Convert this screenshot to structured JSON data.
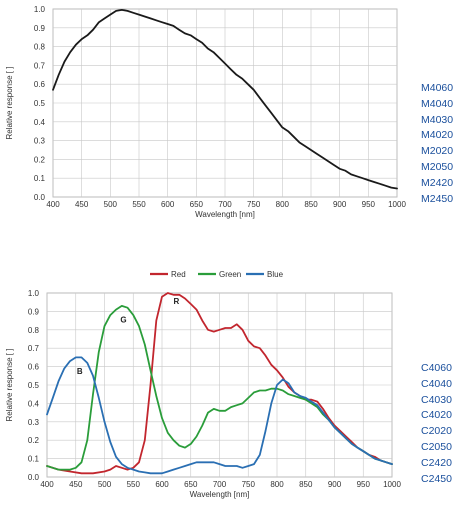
{
  "chart_data": [
    {
      "type": "line",
      "title": "",
      "xlabel": "Wavelength [nm]",
      "ylabel": "Relative response [ ]",
      "xlim": [
        400,
        1000
      ],
      "ylim": [
        0,
        1.0
      ],
      "x_ticks": [
        "400",
        "450",
        "500",
        "550",
        "600",
        "650",
        "700",
        "750",
        "800",
        "850",
        "900",
        "950",
        "1000"
      ],
      "y_ticks": [
        "0.0",
        "0.1",
        "0.2",
        "0.3",
        "0.4",
        "0.5",
        "0.6",
        "0.7",
        "0.8",
        "0.9",
        "1.0"
      ],
      "grid": true,
      "series": [
        {
          "color": "#1a1a1a",
          "points": [
            [
              400,
              0.57
            ],
            [
              410,
              0.65
            ],
            [
              420,
              0.72
            ],
            [
              430,
              0.77
            ],
            [
              440,
              0.81
            ],
            [
              450,
              0.84
            ],
            [
              460,
              0.86
            ],
            [
              470,
              0.89
            ],
            [
              480,
              0.93
            ],
            [
              490,
              0.95
            ],
            [
              500,
              0.97
            ],
            [
              510,
              0.99
            ],
            [
              520,
              0.995
            ],
            [
              530,
              0.99
            ],
            [
              540,
              0.98
            ],
            [
              550,
              0.97
            ],
            [
              560,
              0.96
            ],
            [
              570,
              0.95
            ],
            [
              580,
              0.94
            ],
            [
              590,
              0.93
            ],
            [
              600,
              0.92
            ],
            [
              610,
              0.91
            ],
            [
              620,
              0.89
            ],
            [
              630,
              0.87
            ],
            [
              640,
              0.86
            ],
            [
              650,
              0.84
            ],
            [
              660,
              0.82
            ],
            [
              670,
              0.79
            ],
            [
              680,
              0.77
            ],
            [
              690,
              0.74
            ],
            [
              700,
              0.71
            ],
            [
              710,
              0.68
            ],
            [
              720,
              0.65
            ],
            [
              730,
              0.63
            ],
            [
              740,
              0.6
            ],
            [
              750,
              0.57
            ],
            [
              760,
              0.53
            ],
            [
              770,
              0.49
            ],
            [
              780,
              0.45
            ],
            [
              790,
              0.41
            ],
            [
              800,
              0.37
            ],
            [
              810,
              0.35
            ],
            [
              820,
              0.32
            ],
            [
              830,
              0.29
            ],
            [
              840,
              0.27
            ],
            [
              850,
              0.25
            ],
            [
              860,
              0.23
            ],
            [
              870,
              0.21
            ],
            [
              880,
              0.19
            ],
            [
              890,
              0.17
            ],
            [
              900,
              0.15
            ],
            [
              910,
              0.14
            ],
            [
              920,
              0.12
            ],
            [
              930,
              0.11
            ],
            [
              940,
              0.1
            ],
            [
              950,
              0.09
            ],
            [
              960,
              0.08
            ],
            [
              970,
              0.07
            ],
            [
              980,
              0.06
            ],
            [
              990,
              0.05
            ],
            [
              1000,
              0.045
            ]
          ]
        }
      ]
    },
    {
      "type": "line",
      "title": "",
      "xlabel": "Wavelength [nm]",
      "ylabel": "Relative response [ ]",
      "xlim": [
        400,
        1000
      ],
      "ylim": [
        0,
        1.0
      ],
      "x_ticks": [
        "400",
        "450",
        "500",
        "550",
        "600",
        "650",
        "700",
        "750",
        "800",
        "850",
        "900",
        "950",
        "1000"
      ],
      "y_ticks": [
        "0.0",
        "0.1",
        "0.2",
        "0.3",
        "0.4",
        "0.5",
        "0.6",
        "0.7",
        "0.8",
        "0.9",
        "1.0"
      ],
      "grid": true,
      "legend_position": "top",
      "annotations": [
        {
          "text": "R",
          "x": 625,
          "y": 0.94
        },
        {
          "text": "G",
          "x": 533,
          "y": 0.84
        },
        {
          "text": "B",
          "x": 457,
          "y": 0.56
        }
      ],
      "series": [
        {
          "name": "Red",
          "color": "#c2262e",
          "points": [
            [
              400,
              0.06
            ],
            [
              420,
              0.04
            ],
            [
              440,
              0.03
            ],
            [
              460,
              0.02
            ],
            [
              480,
              0.02
            ],
            [
              500,
              0.03
            ],
            [
              510,
              0.04
            ],
            [
              520,
              0.06
            ],
            [
              530,
              0.05
            ],
            [
              540,
              0.04
            ],
            [
              550,
              0.05
            ],
            [
              560,
              0.08
            ],
            [
              570,
              0.2
            ],
            [
              580,
              0.5
            ],
            [
              590,
              0.85
            ],
            [
              600,
              0.98
            ],
            [
              610,
              1.0
            ],
            [
              620,
              0.99
            ],
            [
              630,
              0.99
            ],
            [
              640,
              0.97
            ],
            [
              650,
              0.94
            ],
            [
              660,
              0.91
            ],
            [
              670,
              0.85
            ],
            [
              680,
              0.8
            ],
            [
              690,
              0.79
            ],
            [
              700,
              0.8
            ],
            [
              710,
              0.81
            ],
            [
              720,
              0.81
            ],
            [
              730,
              0.83
            ],
            [
              740,
              0.8
            ],
            [
              750,
              0.74
            ],
            [
              760,
              0.71
            ],
            [
              770,
              0.7
            ],
            [
              780,
              0.66
            ],
            [
              790,
              0.61
            ],
            [
              800,
              0.58
            ],
            [
              810,
              0.54
            ],
            [
              820,
              0.49
            ],
            [
              830,
              0.46
            ],
            [
              840,
              0.44
            ],
            [
              850,
              0.42
            ],
            [
              860,
              0.42
            ],
            [
              870,
              0.41
            ],
            [
              880,
              0.37
            ],
            [
              890,
              0.32
            ],
            [
              900,
              0.28
            ],
            [
              910,
              0.25
            ],
            [
              920,
              0.22
            ],
            [
              930,
              0.19
            ],
            [
              940,
              0.16
            ],
            [
              950,
              0.14
            ],
            [
              960,
              0.12
            ],
            [
              970,
              0.11
            ],
            [
              980,
              0.09
            ],
            [
              990,
              0.08
            ],
            [
              1000,
              0.07
            ]
          ]
        },
        {
          "name": "Green",
          "color": "#2a9d3a",
          "points": [
            [
              400,
              0.06
            ],
            [
              410,
              0.05
            ],
            [
              420,
              0.04
            ],
            [
              430,
              0.04
            ],
            [
              440,
              0.04
            ],
            [
              450,
              0.05
            ],
            [
              460,
              0.08
            ],
            [
              470,
              0.2
            ],
            [
              480,
              0.45
            ],
            [
              490,
              0.68
            ],
            [
              500,
              0.82
            ],
            [
              510,
              0.88
            ],
            [
              520,
              0.91
            ],
            [
              530,
              0.93
            ],
            [
              540,
              0.92
            ],
            [
              550,
              0.88
            ],
            [
              560,
              0.82
            ],
            [
              570,
              0.72
            ],
            [
              580,
              0.58
            ],
            [
              590,
              0.44
            ],
            [
              600,
              0.32
            ],
            [
              610,
              0.24
            ],
            [
              620,
              0.2
            ],
            [
              630,
              0.17
            ],
            [
              640,
              0.16
            ],
            [
              650,
              0.18
            ],
            [
              660,
              0.22
            ],
            [
              670,
              0.28
            ],
            [
              680,
              0.35
            ],
            [
              690,
              0.37
            ],
            [
              700,
              0.36
            ],
            [
              710,
              0.36
            ],
            [
              720,
              0.38
            ],
            [
              730,
              0.39
            ],
            [
              740,
              0.4
            ],
            [
              750,
              0.43
            ],
            [
              760,
              0.46
            ],
            [
              770,
              0.47
            ],
            [
              780,
              0.47
            ],
            [
              790,
              0.48
            ],
            [
              800,
              0.48
            ],
            [
              810,
              0.47
            ],
            [
              820,
              0.45
            ],
            [
              830,
              0.44
            ],
            [
              840,
              0.43
            ],
            [
              850,
              0.42
            ],
            [
              860,
              0.4
            ],
            [
              870,
              0.38
            ],
            [
              880,
              0.34
            ],
            [
              890,
              0.31
            ],
            [
              900,
              0.27
            ],
            [
              910,
              0.24
            ],
            [
              920,
              0.21
            ],
            [
              930,
              0.18
            ],
            [
              940,
              0.16
            ],
            [
              950,
              0.14
            ],
            [
              960,
              0.12
            ],
            [
              970,
              0.1
            ],
            [
              980,
              0.09
            ],
            [
              990,
              0.08
            ],
            [
              1000,
              0.07
            ]
          ]
        },
        {
          "name": "Blue",
          "color": "#2a6fb3",
          "points": [
            [
              400,
              0.34
            ],
            [
              410,
              0.43
            ],
            [
              420,
              0.52
            ],
            [
              430,
              0.59
            ],
            [
              440,
              0.63
            ],
            [
              450,
              0.65
            ],
            [
              460,
              0.65
            ],
            [
              470,
              0.62
            ],
            [
              480,
              0.55
            ],
            [
              490,
              0.43
            ],
            [
              500,
              0.3
            ],
            [
              510,
              0.19
            ],
            [
              520,
              0.11
            ],
            [
              530,
              0.07
            ],
            [
              540,
              0.05
            ],
            [
              550,
              0.04
            ],
            [
              560,
              0.03
            ],
            [
              570,
              0.025
            ],
            [
              580,
              0.02
            ],
            [
              590,
              0.02
            ],
            [
              600,
              0.02
            ],
            [
              610,
              0.03
            ],
            [
              620,
              0.04
            ],
            [
              630,
              0.05
            ],
            [
              640,
              0.06
            ],
            [
              650,
              0.07
            ],
            [
              660,
              0.08
            ],
            [
              670,
              0.08
            ],
            [
              680,
              0.08
            ],
            [
              690,
              0.08
            ],
            [
              700,
              0.07
            ],
            [
              710,
              0.06
            ],
            [
              720,
              0.06
            ],
            [
              730,
              0.06
            ],
            [
              740,
              0.05
            ],
            [
              750,
              0.06
            ],
            [
              760,
              0.07
            ],
            [
              770,
              0.12
            ],
            [
              780,
              0.25
            ],
            [
              790,
              0.4
            ],
            [
              800,
              0.5
            ],
            [
              810,
              0.53
            ],
            [
              820,
              0.51
            ],
            [
              830,
              0.46
            ],
            [
              840,
              0.44
            ],
            [
              850,
              0.43
            ],
            [
              860,
              0.41
            ],
            [
              870,
              0.39
            ],
            [
              880,
              0.35
            ],
            [
              890,
              0.31
            ],
            [
              900,
              0.27
            ],
            [
              910,
              0.24
            ],
            [
              920,
              0.21
            ],
            [
              930,
              0.18
            ],
            [
              940,
              0.16
            ],
            [
              950,
              0.14
            ],
            [
              960,
              0.12
            ],
            [
              970,
              0.1
            ],
            [
              980,
              0.09
            ],
            [
              990,
              0.08
            ],
            [
              1000,
              0.07
            ]
          ]
        }
      ]
    }
  ],
  "mono_models": [
    "M4060",
    "M4040",
    "M4030",
    "M4020",
    "M2020",
    "M2050",
    "M2420",
    "M2450"
  ],
  "color_models": [
    "C4060",
    "C4040",
    "C4030",
    "C4020",
    "C2020",
    "C2050",
    "C2420",
    "C2450"
  ]
}
